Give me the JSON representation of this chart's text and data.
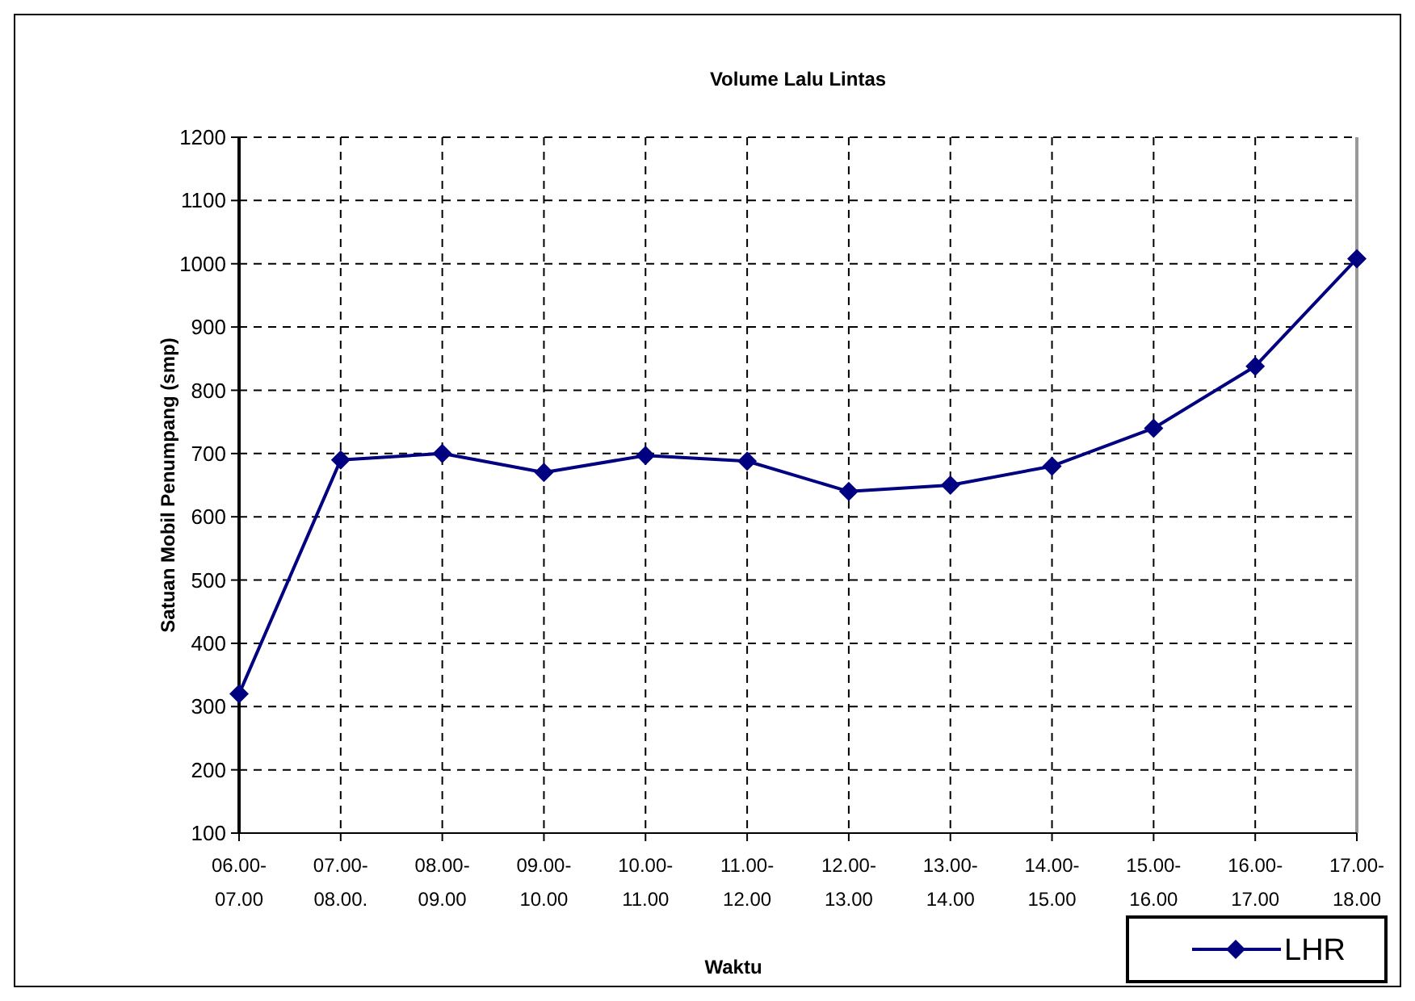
{
  "chart_data": {
    "type": "line",
    "title": "Volume Lalu Lintas",
    "xlabel": "Waktu",
    "ylabel": "Satuan Mobil Penumpang (smp)",
    "categories": [
      "06.00-07.00",
      "07.00-08.00.",
      "08.00-09.00",
      "09.00-10.00",
      "10.00-11.00",
      "11.00-12.00",
      "12.00-13.00",
      "13.00-14.00",
      "14.00-15.00",
      "15.00-16.00",
      "16.00-17.00",
      "17.00-18.00"
    ],
    "series": [
      {
        "name": "LHR",
        "color": "#000080",
        "values": [
          320,
          690,
          700,
          670,
          697,
          688,
          640,
          650,
          680,
          740,
          838,
          1008
        ]
      }
    ],
    "ylim": [
      100,
      1200
    ],
    "yticks": [
      100,
      200,
      300,
      400,
      500,
      600,
      700,
      800,
      900,
      1000,
      1100,
      1200
    ],
    "grid": true,
    "legend": "bottom right",
    "marker": "diamond",
    "line_style": "solid"
  }
}
